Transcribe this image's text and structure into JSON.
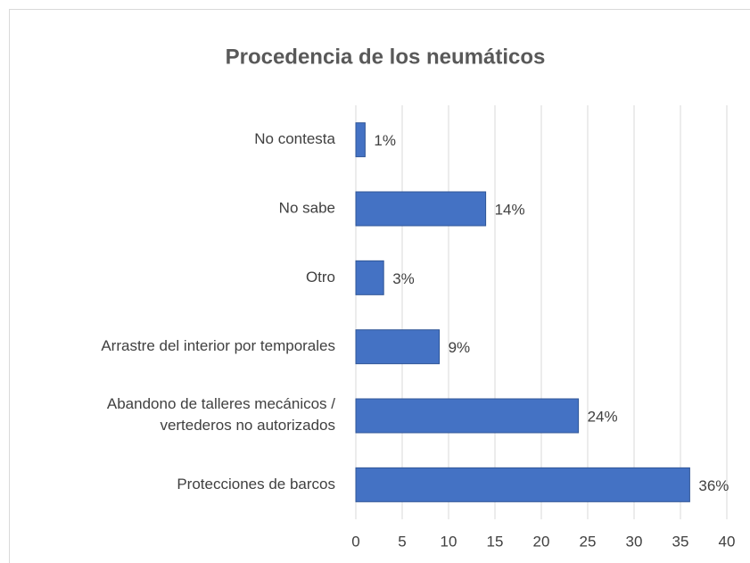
{
  "chart_data": {
    "type": "hbar",
    "title": "Procedencia de los neumáticos",
    "categories": [
      "No contesta",
      "No sabe",
      "Otro",
      "Arrastre del interior por temporales",
      "Abandono de talleres mecánicos /\nvertederos no autorizados",
      "Protecciones de barcos"
    ],
    "values": [
      1,
      14,
      3,
      9,
      24,
      36
    ],
    "value_labels": [
      "1%",
      "14%",
      "3%",
      "9%",
      "24%",
      "36%"
    ],
    "color": "#4472c4",
    "xlim": [
      0,
      40
    ],
    "xticks": [
      0,
      5,
      10,
      15,
      20,
      25,
      30,
      35,
      40
    ],
    "grid": true
  }
}
